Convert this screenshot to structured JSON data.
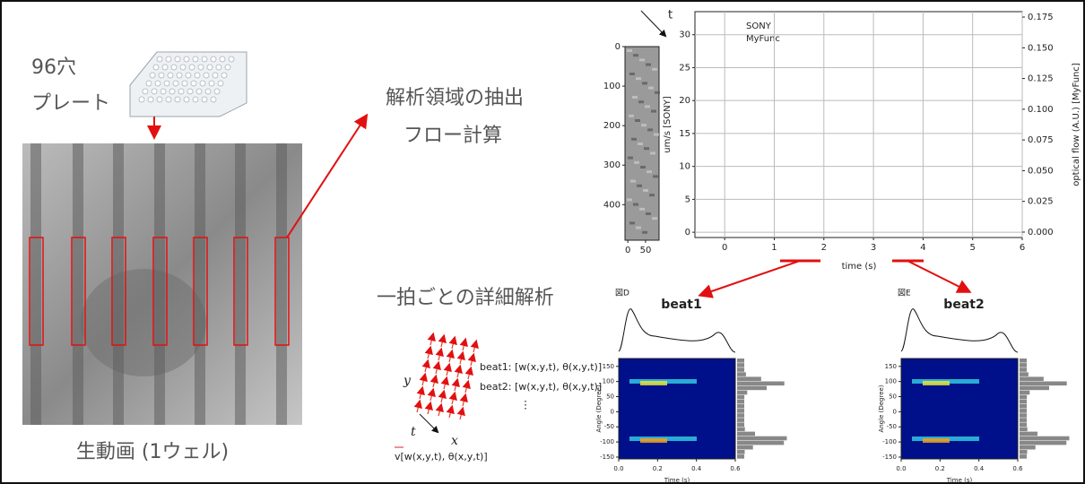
{
  "plate": {
    "lines": [
      "96穴",
      "プレート"
    ]
  },
  "video": {
    "caption": "生動画 (1ウェル)"
  },
  "extract": {
    "lines": [
      "解析領域の抽出",
      "フロー計算"
    ]
  },
  "perbeat": {
    "label": "一拍ごとの詳細解析"
  },
  "schematic": {
    "axis_labels": {
      "y": "y",
      "t": "t",
      "x": "x"
    },
    "rows": [
      "beat1: [w(x,y,t), θ(x,y,t)]",
      "beat2: [w(x,y,t), θ(x,y,t)]"
    ],
    "ellipsis": "⋮",
    "vector": "v[w(x,y,t), θ(x,y,t)]"
  },
  "strip": {
    "time_label": "t",
    "ylim": [
      0,
      490
    ],
    "yticks": [
      0,
      100,
      200,
      300,
      400
    ],
    "xlim": [
      -8,
      88
    ],
    "xticks": [
      0,
      50
    ]
  },
  "flow_chart": {
    "legend": [
      "SONY",
      "MyFunc"
    ],
    "xlabel": "time (s)",
    "ylabel": "um/s [SONY]",
    "y2label": "optical flow (A.U.) [MyFunc]",
    "xlim": [
      -0.6,
      6
    ],
    "xticks": [
      0,
      1,
      2,
      3,
      4,
      5,
      6
    ],
    "ylim": [
      -0.8,
      33.5
    ],
    "yticks": [
      0,
      5,
      10,
      15,
      20,
      25,
      30
    ],
    "y2lim": [
      -0.0044,
      0.1794
    ],
    "y2ticks": [
      {
        "value": 0,
        "label": "0.000"
      },
      {
        "value": 0.025,
        "label": "0.025"
      },
      {
        "value": 0.05,
        "label": "0.050"
      },
      {
        "value": 0.075,
        "label": "0.075"
      },
      {
        "value": 0.1,
        "label": "0.100"
      },
      {
        "value": 0.125,
        "label": "0.125"
      },
      {
        "value": 0.15,
        "label": "0.150"
      },
      {
        "value": 0.175,
        "label": "0.175"
      }
    ],
    "grid": true
  },
  "beats": [
    {
      "figure": "図D",
      "title": "beat1",
      "xlabel": "Time (s)",
      "ylabel": "Angle (Degree)",
      "xlim": [
        0,
        0.6
      ],
      "xticks": [
        {
          "value": 0,
          "label": "0.0"
        },
        0.2,
        0.4,
        0.6
      ],
      "ylim": [
        -156,
        176
      ],
      "yticks": [
        150,
        100,
        50,
        0,
        -50,
        -100,
        -150
      ]
    },
    {
      "figure": "図E",
      "title": "beat2",
      "xlabel": "Time (s)",
      "ylabel": "Angle (Degree)",
      "xlim": [
        0,
        0.6
      ],
      "xticks": [
        {
          "value": 0,
          "label": "0.0"
        },
        0.2,
        0.4,
        0.6
      ],
      "ylim": [
        -156,
        176
      ],
      "yticks": [
        150,
        100,
        50,
        0,
        -50,
        -100,
        -150
      ]
    }
  ]
}
